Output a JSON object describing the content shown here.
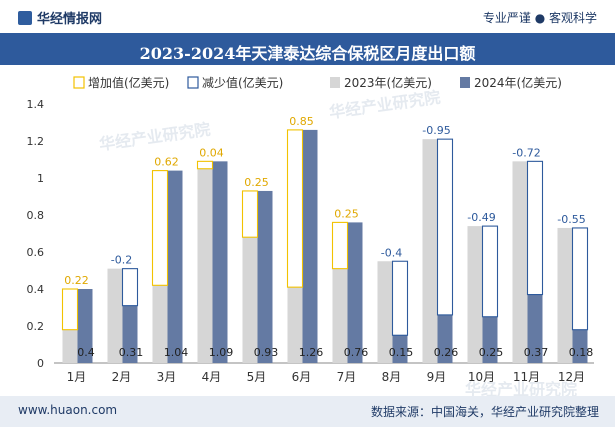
{
  "header": {
    "brand": "华经情报网",
    "tagline": "专业严谨 ● 客观科学"
  },
  "footer": {
    "website": "www.huaon.com",
    "source": "数据来源：中国海关，华经产业研究院整理"
  },
  "watermark": "华经产业研究院",
  "colors": {
    "increase": "#f2c200",
    "decrease": "#2e5a9c",
    "y2023": "#d6d6d6",
    "y2024": "#647aa3",
    "title_bg": "#2e5a9c",
    "footer_bg": "#e8edf4"
  },
  "chart_data": {
    "type": "bar",
    "title": "2023-2024年天津泰达综合保税区月度出口额",
    "xlabel": "",
    "ylabel": "",
    "ylim": [
      0,
      1.4
    ],
    "yticks": [
      "0",
      "0.2",
      "0.4",
      "0.6",
      "0.8",
      "1",
      "1.2",
      "1.4"
    ],
    "grid": false,
    "legend_position": "top",
    "categories": [
      "1月",
      "2月",
      "3月",
      "4月",
      "5月",
      "6月",
      "7月",
      "8月",
      "9月",
      "10月",
      "11月",
      "12月"
    ],
    "legend": [
      "增加值(亿美元)",
      "减少值(亿美元)",
      "2023年(亿美元)",
      "2024年(亿美元)"
    ],
    "series": [
      {
        "name": "2023年(亿美元)",
        "values": [
          0.18,
          0.51,
          0.42,
          1.05,
          0.68,
          0.41,
          0.51,
          0.55,
          1.21,
          0.74,
          1.09,
          0.73
        ]
      },
      {
        "name": "2024年(亿美元)",
        "values": [
          0.4,
          0.31,
          1.04,
          1.09,
          0.93,
          1.26,
          0.76,
          0.15,
          0.26,
          0.25,
          0.37,
          0.18
        ]
      }
    ],
    "change_labels": [
      "0.22",
      "-0.2",
      "0.62",
      "0.04",
      "0.25",
      "0.85",
      "0.25",
      "-0.4",
      "-0.95",
      "-0.49",
      "-0.72",
      "-0.55"
    ],
    "value_labels_2024": [
      "0.4",
      "0.31",
      "1.04",
      "1.09",
      "0.93",
      "1.26",
      "0.76",
      "0.15",
      "0.26",
      "0.25",
      "0.37",
      "0.18"
    ]
  }
}
